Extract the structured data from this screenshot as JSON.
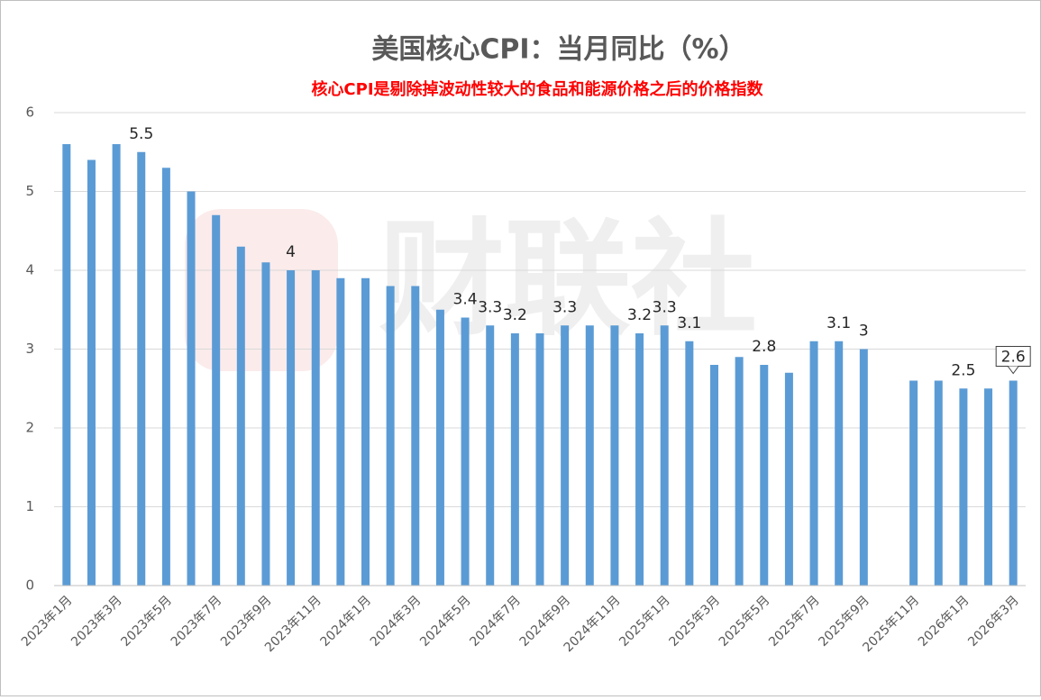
{
  "chart_data": {
    "type": "bar",
    "title": "美国核心CPI：当月同比（%）",
    "subtitle": "核心CPI是剔除掉波动性较大的食品和能源价格之后的价格指数",
    "watermark": "财联社",
    "categories": [
      "2023年1月",
      null,
      "2023年3月",
      null,
      "2023年5月",
      null,
      "2023年7月",
      null,
      "2023年9月",
      null,
      "2023年11月",
      null,
      "2024年1月",
      null,
      "2024年3月",
      null,
      "2024年5月",
      null,
      "2024年7月",
      null,
      "2024年9月",
      null,
      "2024年11月",
      null,
      "2025年1月",
      null,
      "2025年3月",
      null,
      "2025年5月",
      null,
      "2025年7月",
      null,
      "2025年9月",
      null,
      "2025年11月",
      null,
      "2026年1月",
      null,
      "2026年3月"
    ],
    "values": [
      5.6,
      5.4,
      5.6,
      5.5,
      5.3,
      5.0,
      4.7,
      4.3,
      4.1,
      4.0,
      4.0,
      3.9,
      3.9,
      3.8,
      3.8,
      3.5,
      3.4,
      3.3,
      3.2,
      3.2,
      3.3,
      3.3,
      3.3,
      3.2,
      3.3,
      3.1,
      2.8,
      2.9,
      2.8,
      2.7,
      3.1,
      3.1,
      3.0,
      null,
      2.6,
      2.6,
      2.5,
      2.5,
      2.6
    ],
    "value_labels": [
      null,
      null,
      null,
      "5.5",
      null,
      null,
      null,
      null,
      null,
      "4",
      null,
      null,
      null,
      null,
      null,
      null,
      "3.4",
      "3.3",
      "3.2",
      null,
      "3.3",
      null,
      null,
      "3.2",
      "3.3",
      "3.1",
      null,
      null,
      "2.8",
      null,
      null,
      "3.1",
      "3",
      null,
      null,
      null,
      "2.5",
      null,
      "2.6"
    ],
    "color": "#5b9bd5",
    "ylim": [
      0,
      6
    ],
    "yticks": [
      0,
      1,
      2,
      3,
      4,
      5,
      6
    ],
    "grid": true
  }
}
